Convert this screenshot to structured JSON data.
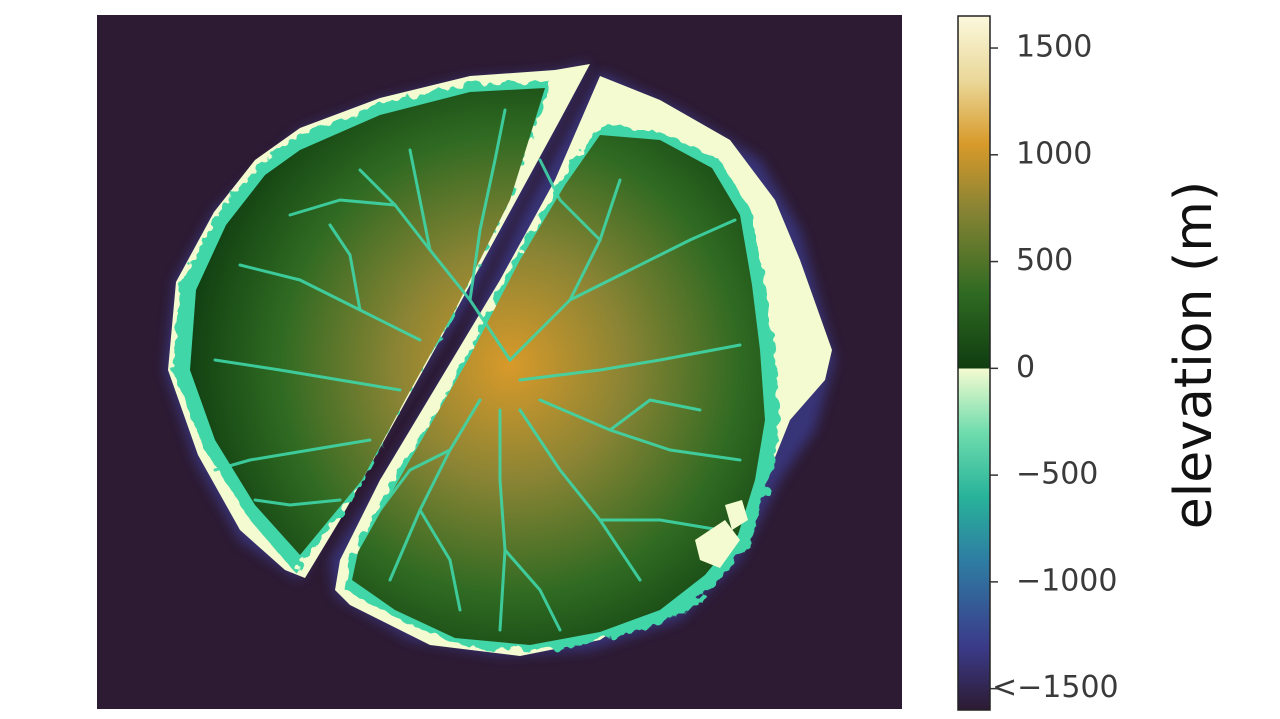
{
  "chart_data": {
    "type": "heatmap",
    "title": "",
    "xlabel": "",
    "ylabel": "",
    "description_units": "m",
    "colorbar": {
      "label": "elevation (m)",
      "range": [
        -1600,
        1650
      ],
      "ticks": [
        {
          "value": 1500,
          "label": "1500"
        },
        {
          "value": 1000,
          "label": "1000"
        },
        {
          "value": 500,
          "label": "500"
        },
        {
          "value": 0,
          "label": "0"
        },
        {
          "value": -500,
          "label": "−500"
        },
        {
          "value": -1000,
          "label": "−1000"
        },
        {
          "value": -1500,
          "label": "<−1500"
        }
      ],
      "colormap_stops": [
        {
          "value": -1600,
          "color": "#2d1b33"
        },
        {
          "value": -1300,
          "color": "#3b3b8a"
        },
        {
          "value": -900,
          "color": "#2e7da3"
        },
        {
          "value": -600,
          "color": "#28b39a"
        },
        {
          "value": -300,
          "color": "#6fdcad"
        },
        {
          "value": -1,
          "color": "#f4fbd0"
        },
        {
          "value": 0,
          "color": "#0f3d10"
        },
        {
          "value": 350,
          "color": "#2f6a22"
        },
        {
          "value": 750,
          "color": "#8a8434"
        },
        {
          "value": 1050,
          "color": "#d89a2a"
        },
        {
          "value": 1350,
          "color": "#ead89a"
        },
        {
          "value": 1650,
          "color": "#fbf8dc"
        }
      ]
    },
    "map": {
      "background_color": "#2d1b33",
      "shelf_color": "#f4fbd0",
      "reef_color": "#3fd6a8",
      "channel_color": "#3fd6a8",
      "land_low_color": "#0f3d10",
      "land_high_color": "#d89a2a"
    }
  }
}
